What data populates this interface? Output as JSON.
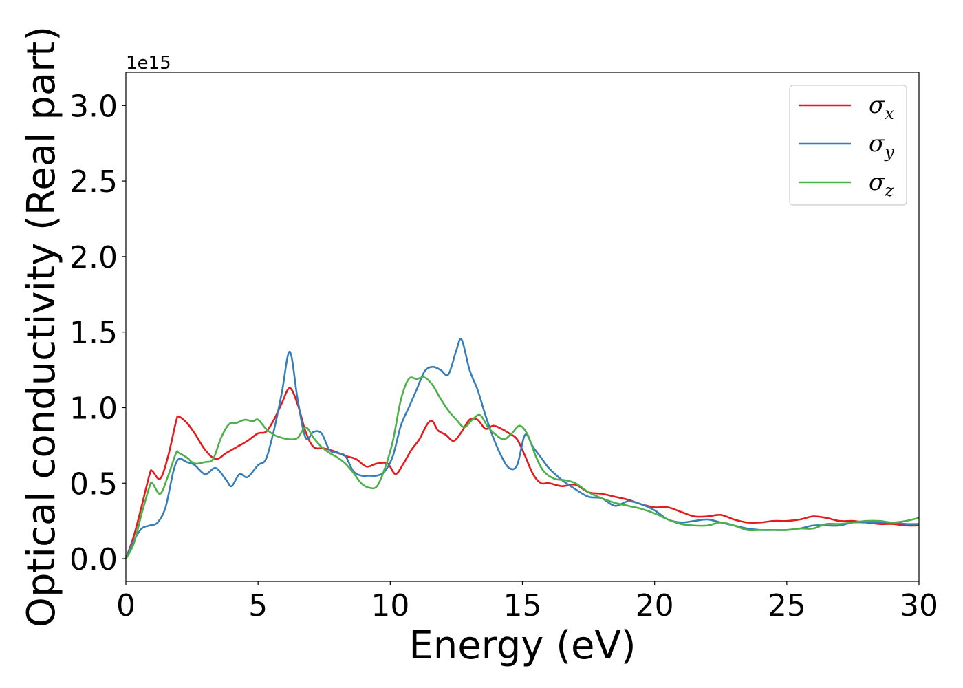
{
  "chart_data": {
    "type": "line",
    "xlabel": "Energy (eV)",
    "ylabel": "Optical conductivity (Real part)",
    "y_offset_text": "1e15",
    "xlim": [
      0,
      30
    ],
    "ylim": [
      -0.15,
      3.22
    ],
    "xticks": [
      0,
      5,
      10,
      15,
      20,
      25,
      30
    ],
    "yticks": [
      0.0,
      0.5,
      1.0,
      1.5,
      2.0,
      2.5,
      3.0
    ],
    "xtick_labels": [
      "0",
      "5",
      "10",
      "15",
      "20",
      "25",
      "30"
    ],
    "ytick_labels": [
      "0.0",
      "0.5",
      "1.0",
      "1.5",
      "2.0",
      "2.5",
      "3.0"
    ],
    "grid": false,
    "legend": {
      "position": "top-right",
      "entries": [
        {
          "symbol": "σ",
          "sub": "x",
          "color": "#e41a1c"
        },
        {
          "symbol": "σ",
          "sub": "y",
          "color": "#377eb8"
        },
        {
          "symbol": "σ",
          "sub": "z",
          "color": "#4daf4a"
        }
      ]
    },
    "series": [
      {
        "color": "#e41a1c",
        "x": [
          0,
          0.3,
          0.6,
          0.9,
          1.0,
          1.3,
          1.6,
          1.9,
          2.0,
          2.3,
          2.6,
          3.0,
          3.4,
          3.8,
          4.2,
          4.6,
          5.0,
          5.3,
          5.6,
          5.9,
          6.2,
          6.5,
          6.8,
          7.1,
          7.5,
          7.9,
          8.3,
          8.7,
          9.1,
          9.5,
          9.9,
          10.2,
          10.5,
          10.8,
          11.1,
          11.4,
          11.6,
          11.8,
          12.1,
          12.4,
          12.7,
          13.0,
          13.3,
          13.6,
          13.9,
          14.2,
          14.5,
          14.8,
          15.1,
          15.4,
          15.7,
          16.0,
          16.5,
          17.0,
          17.5,
          18.0,
          18.5,
          19.0,
          19.5,
          20.0,
          20.5,
          21.0,
          21.5,
          22.0,
          22.5,
          23.0,
          23.5,
          24.0,
          24.5,
          25.0,
          25.5,
          26.0,
          26.5,
          27.0,
          27.5,
          28.0,
          28.5,
          29.0,
          29.5,
          30.0
        ],
        "y": [
          0.0,
          0.15,
          0.35,
          0.56,
          0.58,
          0.53,
          0.68,
          0.91,
          0.94,
          0.9,
          0.83,
          0.72,
          0.66,
          0.7,
          0.74,
          0.78,
          0.83,
          0.84,
          0.92,
          1.03,
          1.13,
          1.02,
          0.84,
          0.74,
          0.73,
          0.71,
          0.68,
          0.66,
          0.61,
          0.63,
          0.63,
          0.56,
          0.63,
          0.72,
          0.79,
          0.89,
          0.91,
          0.85,
          0.82,
          0.78,
          0.84,
          0.92,
          0.92,
          0.86,
          0.88,
          0.86,
          0.83,
          0.79,
          0.68,
          0.56,
          0.5,
          0.5,
          0.48,
          0.49,
          0.44,
          0.43,
          0.41,
          0.39,
          0.36,
          0.34,
          0.34,
          0.31,
          0.28,
          0.28,
          0.29,
          0.26,
          0.24,
          0.24,
          0.25,
          0.25,
          0.26,
          0.28,
          0.27,
          0.25,
          0.25,
          0.24,
          0.23,
          0.23,
          0.22,
          0.22
        ]
      },
      {
        "color": "#377eb8",
        "x": [
          0,
          0.3,
          0.6,
          0.9,
          1.2,
          1.5,
          1.8,
          2.0,
          2.3,
          2.6,
          3.0,
          3.4,
          3.8,
          4.0,
          4.3,
          4.6,
          5.0,
          5.3,
          5.6,
          5.9,
          6.2,
          6.5,
          6.8,
          7.1,
          7.4,
          7.7,
          8.0,
          8.3,
          8.6,
          8.9,
          9.2,
          9.5,
          9.8,
          10.1,
          10.4,
          10.7,
          11.0,
          11.3,
          11.6,
          11.9,
          12.2,
          12.5,
          12.7,
          13.0,
          13.3,
          13.6,
          13.9,
          14.2,
          14.5,
          14.8,
          15.1,
          15.4,
          15.7,
          16.0,
          16.5,
          17.0,
          17.5,
          18.0,
          18.5,
          19.0,
          19.5,
          20.0,
          20.5,
          21.0,
          21.5,
          22.0,
          22.5,
          23.0,
          23.5,
          24.0,
          24.5,
          25.0,
          25.5,
          26.0,
          26.5,
          27.0,
          27.5,
          28.0,
          28.5,
          29.0,
          29.5,
          30.0
        ],
        "y": [
          0.0,
          0.12,
          0.2,
          0.22,
          0.24,
          0.34,
          0.58,
          0.66,
          0.64,
          0.62,
          0.56,
          0.6,
          0.52,
          0.48,
          0.56,
          0.54,
          0.62,
          0.66,
          0.85,
          1.1,
          1.37,
          1.05,
          0.8,
          0.84,
          0.83,
          0.72,
          0.7,
          0.68,
          0.58,
          0.55,
          0.55,
          0.55,
          0.58,
          0.68,
          0.88,
          1.0,
          1.12,
          1.24,
          1.27,
          1.25,
          1.22,
          1.38,
          1.45,
          1.25,
          1.12,
          0.95,
          0.8,
          0.68,
          0.6,
          0.62,
          0.82,
          0.74,
          0.67,
          0.6,
          0.52,
          0.46,
          0.41,
          0.4,
          0.35,
          0.38,
          0.36,
          0.32,
          0.26,
          0.24,
          0.25,
          0.26,
          0.24,
          0.22,
          0.2,
          0.19,
          0.19,
          0.19,
          0.2,
          0.22,
          0.22,
          0.22,
          0.24,
          0.24,
          0.24,
          0.24,
          0.23,
          0.23
        ]
      },
      {
        "color": "#4daf4a",
        "x": [
          0,
          0.3,
          0.6,
          0.9,
          1.0,
          1.3,
          1.6,
          1.9,
          2.0,
          2.3,
          2.6,
          3.0,
          3.3,
          3.6,
          3.9,
          4.2,
          4.5,
          4.8,
          5.0,
          5.3,
          5.6,
          5.9,
          6.2,
          6.5,
          6.8,
          7.1,
          7.4,
          7.7,
          8.0,
          8.3,
          8.6,
          8.9,
          9.2,
          9.5,
          9.8,
          10.1,
          10.4,
          10.7,
          11.0,
          11.3,
          11.6,
          11.9,
          12.2,
          12.5,
          12.8,
          13.1,
          13.4,
          13.7,
          14.0,
          14.3,
          14.6,
          14.9,
          15.2,
          15.5,
          15.8,
          16.2,
          16.6,
          17.0,
          17.5,
          18.0,
          18.5,
          19.0,
          19.5,
          20.0,
          20.5,
          21.0,
          21.5,
          22.0,
          22.5,
          23.0,
          23.5,
          24.0,
          24.5,
          25.0,
          25.5,
          26.0,
          26.5,
          27.0,
          27.5,
          28.0,
          28.5,
          29.0,
          29.5,
          30.0
        ],
        "y": [
          0.0,
          0.1,
          0.3,
          0.48,
          0.5,
          0.43,
          0.55,
          0.7,
          0.7,
          0.67,
          0.63,
          0.64,
          0.66,
          0.8,
          0.89,
          0.9,
          0.92,
          0.91,
          0.92,
          0.86,
          0.82,
          0.8,
          0.79,
          0.8,
          0.87,
          0.8,
          0.74,
          0.7,
          0.67,
          0.63,
          0.57,
          0.5,
          0.47,
          0.48,
          0.6,
          0.78,
          1.05,
          1.19,
          1.19,
          1.2,
          1.15,
          1.06,
          0.98,
          0.92,
          0.87,
          0.92,
          0.95,
          0.87,
          0.82,
          0.79,
          0.83,
          0.88,
          0.82,
          0.68,
          0.58,
          0.53,
          0.52,
          0.5,
          0.44,
          0.4,
          0.37,
          0.35,
          0.33,
          0.3,
          0.26,
          0.23,
          0.22,
          0.22,
          0.24,
          0.22,
          0.19,
          0.19,
          0.19,
          0.19,
          0.2,
          0.2,
          0.23,
          0.23,
          0.24,
          0.25,
          0.25,
          0.24,
          0.25,
          0.27
        ]
      }
    ]
  }
}
